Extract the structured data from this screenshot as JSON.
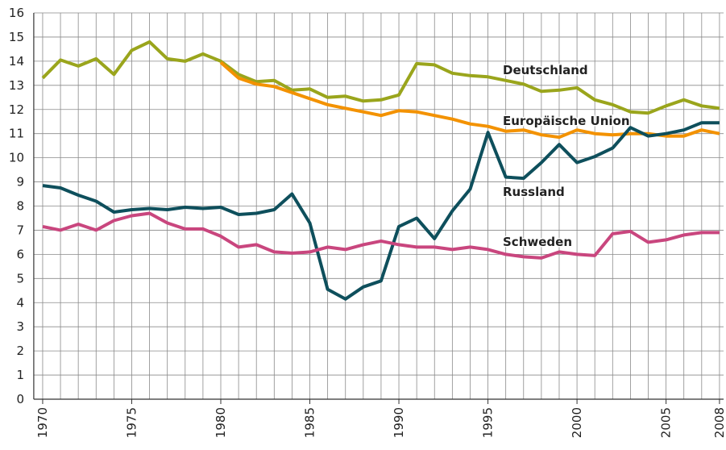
{
  "chart_data": {
    "type": "line",
    "x": [
      1970,
      1971,
      1972,
      1973,
      1974,
      1975,
      1976,
      1977,
      1978,
      1979,
      1980,
      1981,
      1982,
      1983,
      1984,
      1985,
      1986,
      1987,
      1988,
      1989,
      1990,
      1991,
      1992,
      1993,
      1994,
      1995,
      1996,
      1997,
      1998,
      1999,
      2000,
      2001,
      2002,
      2003,
      2004,
      2005,
      2006,
      2007,
      2008
    ],
    "series": [
      {
        "name": "Deutschland",
        "color": "#9aa51c",
        "values": [
          13.3,
          14.05,
          13.8,
          14.1,
          13.45,
          14.45,
          14.8,
          14.1,
          14.0,
          14.3,
          14.0,
          13.45,
          13.15,
          13.2,
          12.8,
          12.85,
          12.5,
          12.55,
          12.35,
          12.4,
          12.6,
          13.9,
          13.85,
          13.5,
          13.4,
          13.35,
          13.2,
          13.05,
          12.75,
          12.8,
          12.9,
          12.4,
          12.2,
          11.9,
          11.85,
          12.15,
          12.4,
          12.15,
          12.05
        ]
      },
      {
        "name": "Europäische Union",
        "color": "#f39200",
        "values": [
          null,
          null,
          null,
          null,
          null,
          null,
          null,
          null,
          null,
          null,
          13.95,
          13.3,
          13.05,
          12.95,
          12.7,
          12.45,
          12.2,
          12.05,
          11.9,
          11.75,
          11.95,
          11.9,
          11.75,
          11.6,
          11.4,
          11.3,
          11.1,
          11.15,
          10.95,
          10.85,
          11.15,
          11.0,
          10.95,
          11.0,
          11.0,
          10.9,
          10.9,
          11.15,
          11.0
        ]
      },
      {
        "name": "Russland",
        "color": "#0e4f5c",
        "values": [
          8.85,
          8.75,
          8.45,
          8.2,
          7.75,
          7.85,
          7.9,
          7.85,
          7.95,
          7.9,
          7.95,
          7.65,
          7.7,
          7.85,
          8.5,
          7.3,
          4.55,
          4.15,
          4.65,
          4.9,
          7.15,
          7.5,
          6.65,
          7.8,
          8.7,
          11.05,
          9.2,
          9.15,
          9.8,
          10.55,
          9.8,
          10.05,
          10.4,
          11.25,
          10.9,
          11.0,
          11.15,
          11.45,
          11.45
        ]
      },
      {
        "name": "Schweden",
        "color": "#c9467e",
        "values": [
          7.15,
          7.0,
          7.25,
          7.0,
          7.4,
          7.6,
          7.7,
          7.3,
          7.05,
          7.05,
          6.75,
          6.3,
          6.4,
          6.1,
          6.05,
          6.1,
          6.3,
          6.2,
          6.4,
          6.55,
          6.4,
          6.3,
          6.3,
          6.2,
          6.3,
          6.2,
          6.0,
          5.9,
          5.85,
          6.1,
          6.0,
          5.95,
          6.85,
          6.95,
          6.5,
          6.6,
          6.8,
          6.9,
          6.9
        ]
      }
    ],
    "xlim": [
      1969.5,
      2008.23
    ],
    "xticks": [
      1970,
      1975,
      1980,
      1985,
      1990,
      1995,
      2000,
      2005,
      2008
    ],
    "ylim": [
      0,
      16
    ],
    "yticks": [
      0,
      1,
      2,
      3,
      4,
      5,
      6,
      7,
      8,
      9,
      10,
      11,
      12,
      13,
      14,
      15,
      16
    ],
    "grid": true
  }
}
